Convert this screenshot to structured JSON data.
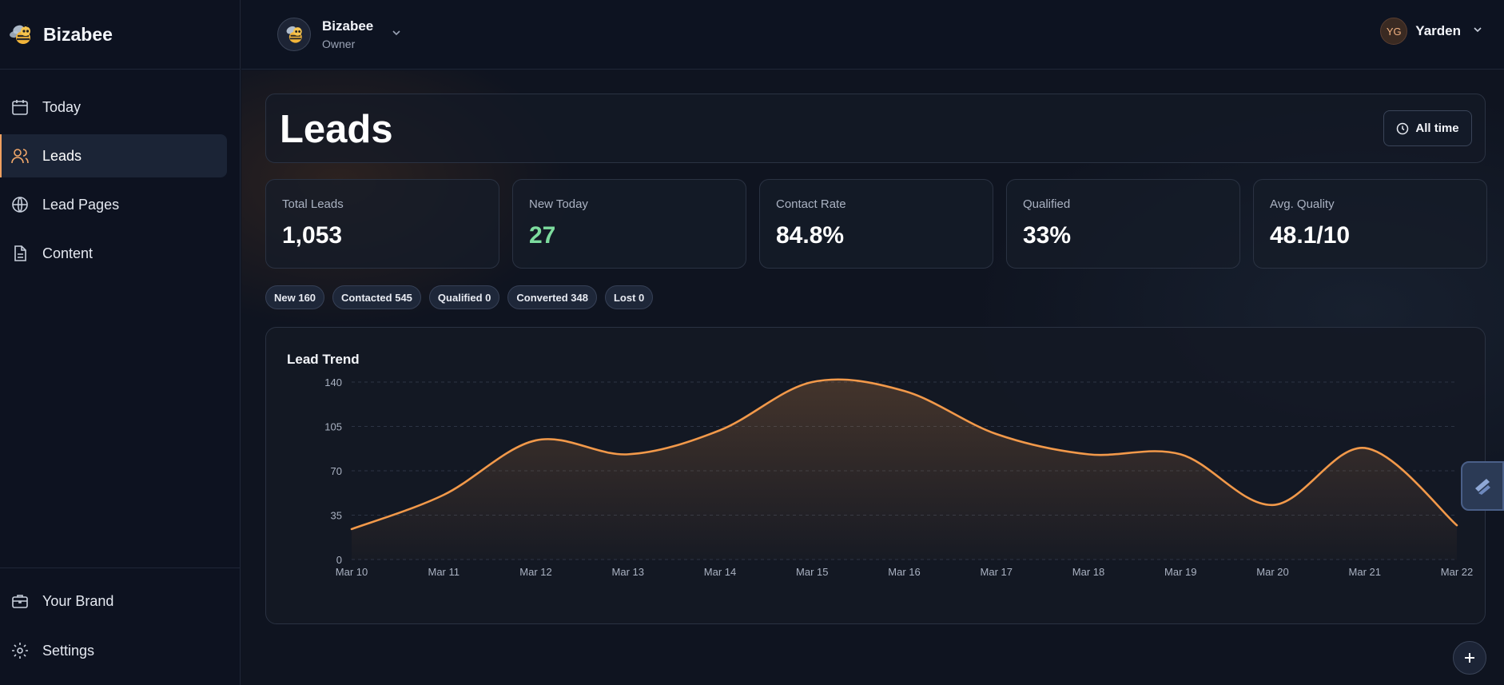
{
  "app": {
    "name": "Bizabee"
  },
  "sidebar": {
    "items": [
      {
        "label": "Today",
        "icon": "calendar-icon"
      },
      {
        "label": "Leads",
        "icon": "users-icon",
        "active": true
      },
      {
        "label": "Lead Pages",
        "icon": "globe-icon"
      },
      {
        "label": "Content",
        "icon": "document-icon"
      }
    ],
    "bottom_items": [
      {
        "label": "Your Brand",
        "icon": "briefcase-icon"
      },
      {
        "label": "Settings",
        "icon": "gear-icon"
      }
    ]
  },
  "topbar": {
    "org_name": "Bizabee",
    "org_role": "Owner",
    "user_initials": "YG",
    "user_name": "Yarden"
  },
  "page": {
    "title": "Leads",
    "time_filter": "All time"
  },
  "stats": [
    {
      "label": "Total Leads",
      "value": "1,053"
    },
    {
      "label": "New Today",
      "value": "27"
    },
    {
      "label": "Contact Rate",
      "value": "84.8%"
    },
    {
      "label": "Qualified",
      "value": "33%"
    },
    {
      "label": "Avg. Quality",
      "value": "48.1/10"
    }
  ],
  "status_chips": [
    {
      "label": "New 160"
    },
    {
      "label": "Contacted 545"
    },
    {
      "label": "Qualified 0"
    },
    {
      "label": "Converted 348"
    },
    {
      "label": "Lost 0"
    }
  ],
  "colors": {
    "accent": "#f2994a",
    "positive": "#7ddc9e"
  },
  "chart_data": {
    "type": "area",
    "title": "Lead Trend",
    "x": [
      "Mar 10",
      "Mar 11",
      "Mar 12",
      "Mar 13",
      "Mar 14",
      "Mar 15",
      "Mar 16",
      "Mar 17",
      "Mar 18",
      "Mar 19",
      "Mar 20",
      "Mar 21",
      "Mar 22"
    ],
    "series": [
      {
        "values": [
          24,
          51,
          94,
          83,
          102,
          140,
          133,
          99,
          83,
          83,
          43,
          88,
          27
        ]
      }
    ],
    "yticks": [
      0,
      35,
      70,
      105,
      140
    ],
    "ylim": [
      0,
      140
    ],
    "grid": true
  }
}
